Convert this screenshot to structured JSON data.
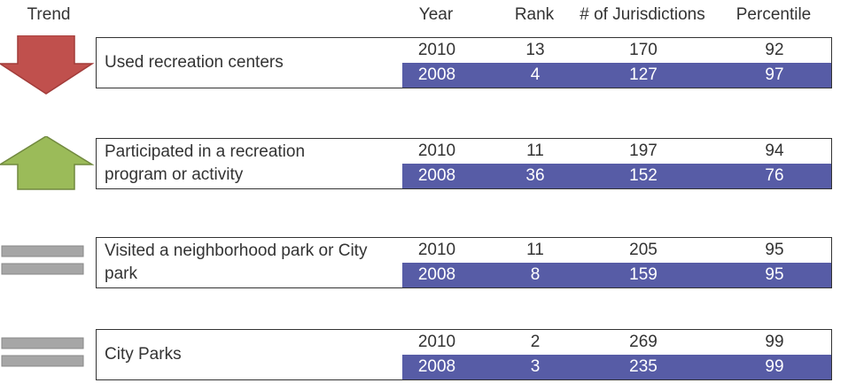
{
  "header": [
    "Trend",
    "Year",
    "Rank",
    "# of Jurisdictions",
    "Percentile"
  ],
  "groups": [
    {
      "label": "Used recreation centers",
      "rows": [
        [
          2010,
          13,
          170,
          92
        ],
        [
          2008,
          4,
          127,
          97
        ]
      ]
    },
    {
      "label": "Participated in a recreation program or activity",
      "rows": [
        [
          2010,
          11,
          197,
          94
        ],
        [
          2008,
          36,
          152,
          76
        ]
      ]
    },
    {
      "label": "Visited a neighborhood park or City park",
      "rows": [
        [
          2010,
          11,
          205,
          95
        ],
        [
          2008,
          8,
          159,
          95
        ]
      ]
    },
    {
      "label": "City Parks",
      "rows": [
        [
          2010,
          2,
          269,
          99
        ],
        [
          2008,
          3,
          235,
          99
        ]
      ]
    }
  ]
}
